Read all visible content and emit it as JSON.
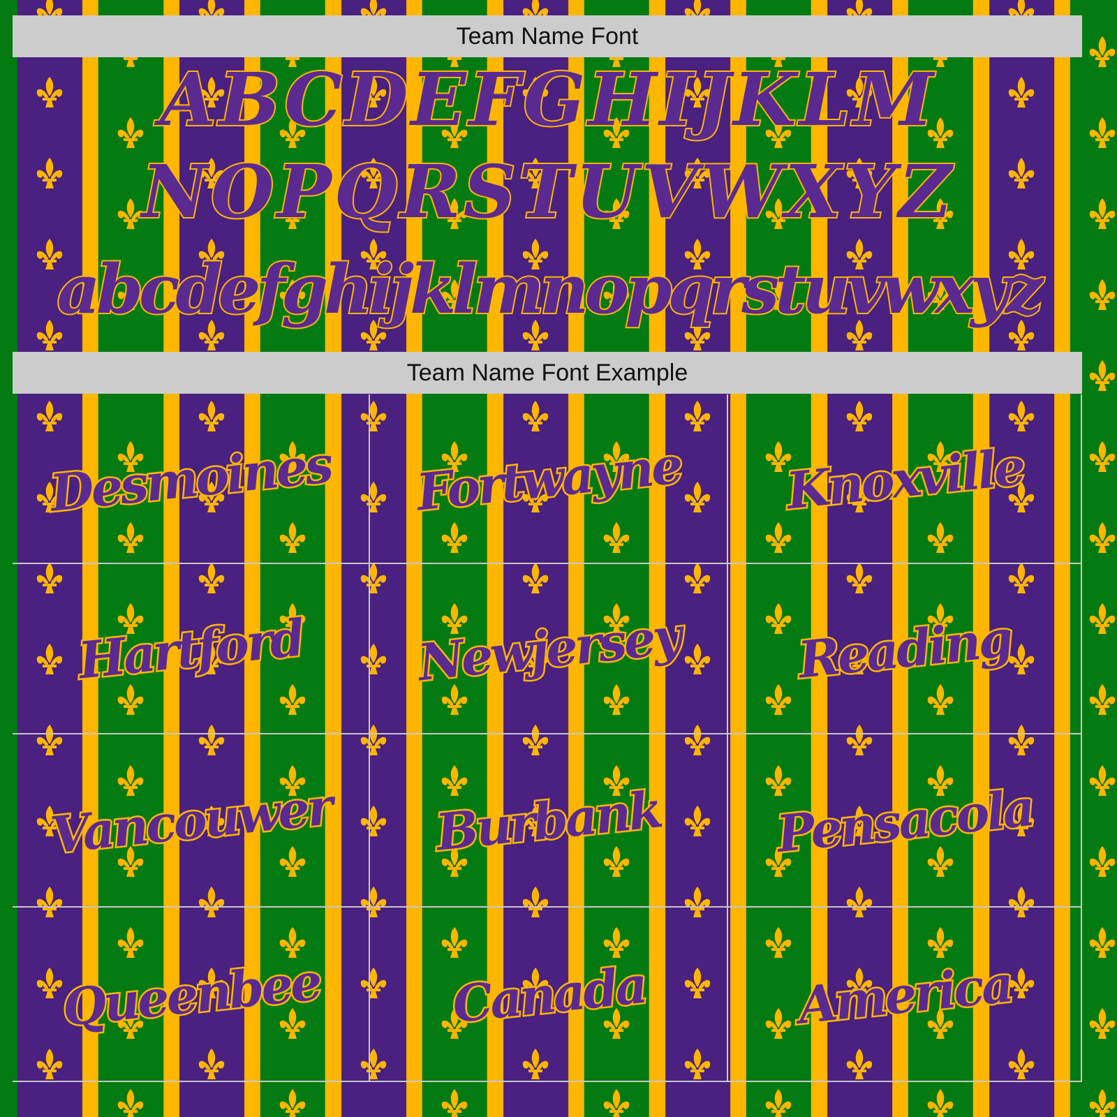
{
  "colors": {
    "purple": "#4a2080",
    "green": "#047a12",
    "gold": "#ffb600",
    "header_bg": "#cccccc",
    "text": "#5a2a90"
  },
  "pattern_icon": "fleur-de-lis-icon",
  "font_section": {
    "title": "Team Name Font",
    "uppercase_row1": "ABCDEFGHIJKLM",
    "uppercase_row2": "NOPQRSTUVWXYZ",
    "lowercase": "abcdefghijklmnopqrstuvwxyz"
  },
  "example_section": {
    "title": "Team Name Font Example",
    "examples": [
      "Desmoines",
      "Fortwayne",
      "Knoxville",
      "Hartford",
      "Newjersey",
      "Reading",
      "Vancouwer",
      "Burbank",
      "Pensacola",
      "Queenbee",
      "Canada",
      "America"
    ]
  }
}
